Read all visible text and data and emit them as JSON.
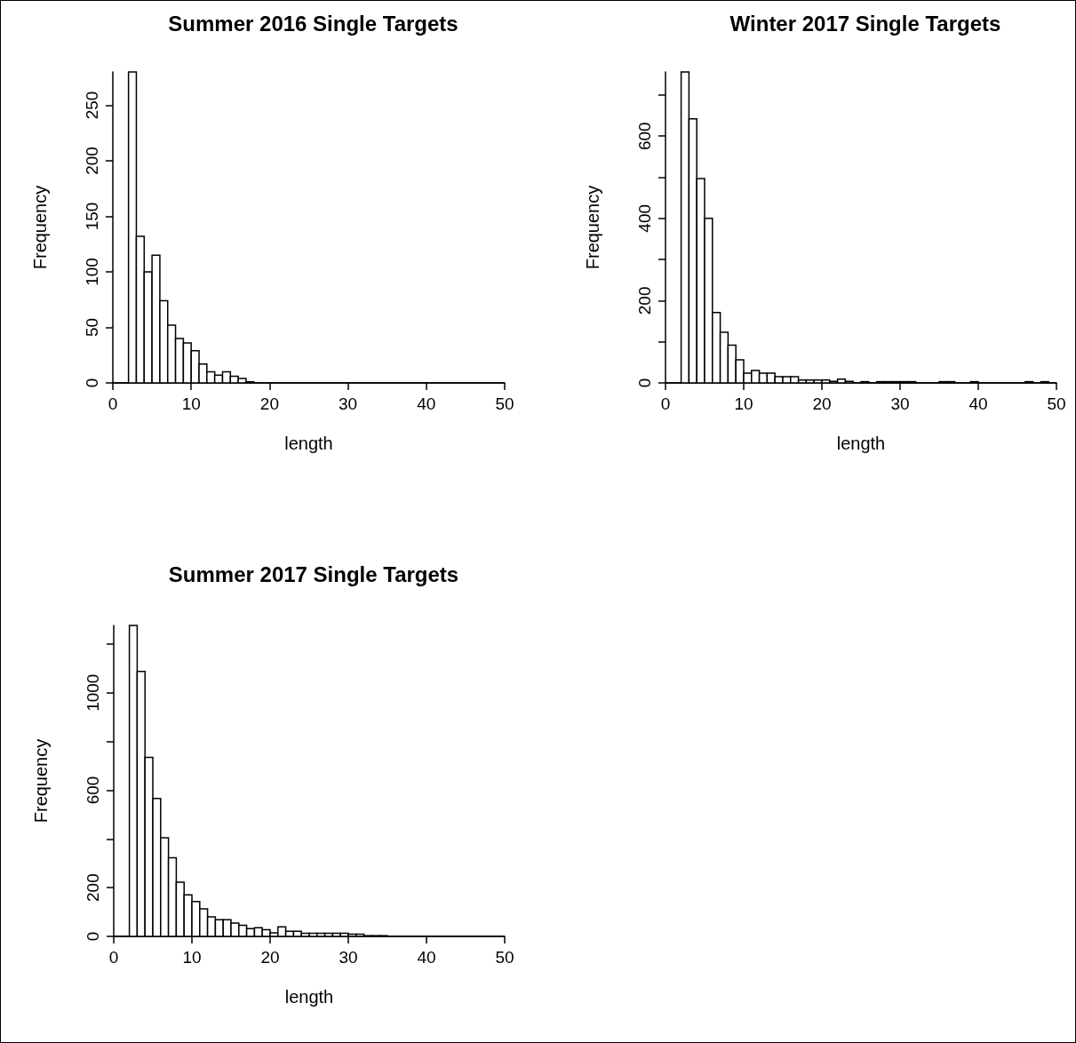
{
  "chart_data": [
    {
      "type": "histogram",
      "title": "Summer 2016 Single Targets",
      "xlabel": "length",
      "ylabel": "Frequency",
      "color": "#ffffff",
      "bins": [
        0,
        1,
        2,
        3,
        4,
        5,
        6,
        7,
        8,
        9,
        10,
        11,
        12,
        13,
        14,
        15,
        16,
        17,
        18,
        19,
        20,
        21,
        22,
        23,
        24,
        25,
        26,
        27,
        28,
        29,
        30,
        31,
        32,
        33,
        34,
        35,
        36,
        37,
        38,
        39,
        40,
        41,
        42,
        43,
        44,
        45,
        46,
        47,
        48,
        49,
        50
      ],
      "values": [
        0,
        0,
        280,
        132,
        100,
        115,
        74,
        52,
        40,
        36,
        29,
        17,
        10,
        7,
        10,
        6,
        4,
        1,
        0,
        0,
        0,
        0,
        0,
        0,
        0,
        0,
        0,
        0,
        0,
        0,
        0,
        0,
        0,
        0,
        0,
        0,
        0,
        0,
        0,
        0,
        0,
        0,
        0,
        0,
        0,
        0,
        0,
        0,
        0,
        0
      ],
      "xlim": [
        0,
        50
      ],
      "xticks": [
        0,
        10,
        20,
        30,
        40,
        50
      ],
      "ylim": [
        0,
        280
      ],
      "yticks": [
        0,
        50,
        100,
        150,
        200,
        250
      ],
      "grid": false
    },
    {
      "type": "histogram",
      "title": "Winter 2017 Single Targets",
      "xlabel": "length",
      "ylabel": "Frequency",
      "color": "#ffffff",
      "bins": [
        0,
        1,
        2,
        3,
        4,
        5,
        6,
        7,
        8,
        9,
        10,
        11,
        12,
        13,
        14,
        15,
        16,
        17,
        18,
        19,
        20,
        21,
        22,
        23,
        24,
        25,
        26,
        27,
        28,
        29,
        30,
        31,
        32,
        33,
        34,
        35,
        36,
        37,
        38,
        39,
        40,
        41,
        42,
        43,
        44,
        45,
        46,
        47,
        48,
        49,
        50
      ],
      "values": [
        0,
        0,
        756,
        642,
        497,
        400,
        171,
        123,
        92,
        56,
        24,
        30,
        24,
        24,
        15,
        15,
        15,
        7,
        7,
        7,
        7,
        4,
        9,
        4,
        0,
        3,
        0,
        3,
        3,
        3,
        3,
        3,
        0,
        0,
        0,
        3,
        3,
        0,
        0,
        3,
        0,
        0,
        0,
        0,
        0,
        0,
        3,
        0,
        3,
        0
      ],
      "xlim": [
        0,
        50
      ],
      "xticks": [
        0,
        10,
        20,
        30,
        40,
        50
      ],
      "ylim": [
        0,
        756
      ],
      "yticks": [
        0,
        {
          "value": 100,
          "label": null
        },
        200,
        {
          "value": 300,
          "label": null
        },
        400,
        {
          "value": 500,
          "label": null
        },
        600,
        {
          "value": 700,
          "label": null
        }
      ],
      "grid": false
    },
    {
      "type": "histogram",
      "title": "Summer 2017 Single Targets",
      "xlabel": "length",
      "ylabel": "Frequency",
      "color": "#ffffff",
      "bins": [
        0,
        1,
        2,
        3,
        4,
        5,
        6,
        7,
        8,
        9,
        10,
        11,
        12,
        13,
        14,
        15,
        16,
        17,
        18,
        19,
        20,
        21,
        22,
        23,
        24,
        25,
        26,
        27,
        28,
        29,
        30,
        31,
        32,
        33,
        34,
        35,
        36,
        37,
        38,
        39,
        40,
        41,
        42,
        43,
        44,
        45,
        46,
        47,
        48,
        49,
        50
      ],
      "values": [
        0,
        0,
        1276,
        1087,
        735,
        566,
        405,
        323,
        222,
        170,
        143,
        113,
        80,
        68,
        68,
        55,
        46,
        32,
        36,
        27,
        15,
        39,
        21,
        21,
        13,
        13,
        13,
        13,
        13,
        13,
        9,
        9,
        3,
        3,
        3,
        0,
        0,
        0,
        0,
        0,
        0,
        0,
        0,
        0,
        0,
        0,
        0,
        0,
        0,
        0
      ],
      "xlim": [
        0,
        50
      ],
      "xticks": [
        0,
        10,
        20,
        30,
        40,
        50
      ],
      "ylim": [
        0,
        1276
      ],
      "yticks": [
        0,
        200,
        {
          "value": 400,
          "label": null
        },
        600,
        {
          "value": 800,
          "label": null
        },
        1000,
        {
          "value": 1200,
          "label": null
        }
      ],
      "grid": false
    }
  ]
}
